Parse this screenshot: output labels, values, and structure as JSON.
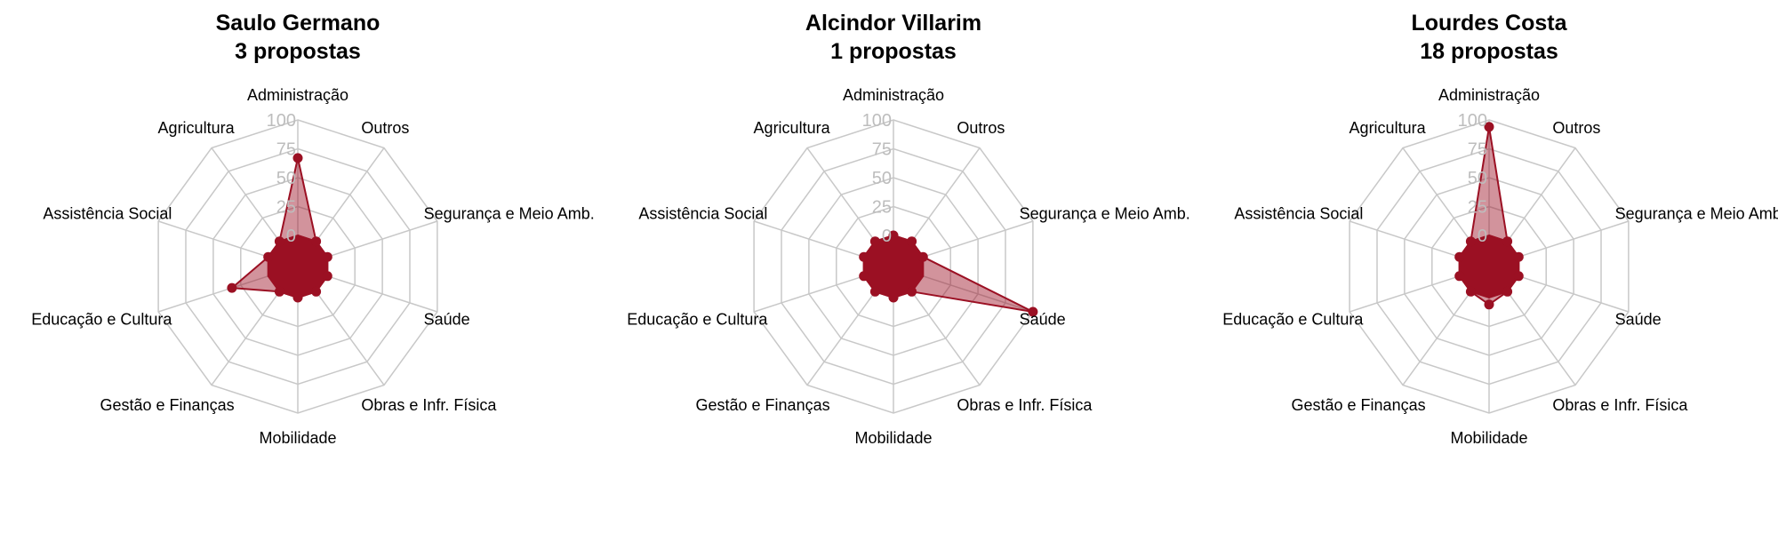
{
  "chart_data": [
    {
      "type": "radar",
      "title": "Saulo Germano",
      "subtitle": "3 propostas",
      "categories": [
        "Administração",
        "Outros",
        "Segurança e Meio Amb.",
        "Saúde",
        "Obras e Infr. Física",
        "Mobilidade",
        "Gestão e Finanças",
        "Educação e Cultura",
        "Assistência Social",
        "Agricultura"
      ],
      "values": [
        67,
        0,
        0,
        0,
        0,
        0,
        0,
        33,
        0,
        0
      ],
      "ylim": [
        0,
        100
      ],
      "ticks": [
        "0",
        "25",
        "50",
        "75",
        "100"
      ]
    },
    {
      "type": "radar",
      "title": "Alcindor Villarim",
      "subtitle": "1 propostas",
      "categories": [
        "Administração",
        "Outros",
        "Segurança e Meio Amb.",
        "Saúde",
        "Obras e Infr. Física",
        "Mobilidade",
        "Gestão e Finanças",
        "Educação e Cultura",
        "Assistência Social",
        "Agricultura"
      ],
      "values": [
        0,
        0,
        0,
        100,
        0,
        0,
        0,
        0,
        0,
        0
      ],
      "ylim": [
        0,
        100
      ],
      "ticks": [
        "0",
        "25",
        "50",
        "75",
        "100"
      ]
    },
    {
      "type": "radar",
      "title": "Lourdes Costa",
      "subtitle": "18 propostas",
      "categories": [
        "Administração",
        "Outros",
        "Segurança e Meio Amb.",
        "Saúde",
        "Obras e Infr. Física",
        "Mobilidade",
        "Gestão e Finanças",
        "Educação e Cultura",
        "Assistência Social",
        "Agricultura"
      ],
      "values": [
        94,
        0,
        0,
        0,
        0,
        6,
        0,
        0,
        0,
        0
      ],
      "ylim": [
        0,
        100
      ],
      "ticks": [
        "0",
        "25",
        "50",
        "75",
        "100"
      ]
    }
  ],
  "colors": {
    "series": "#9b1023",
    "fill": "#9b1023",
    "grid": "#c8c8c8",
    "tick": "#bdbdbd"
  }
}
